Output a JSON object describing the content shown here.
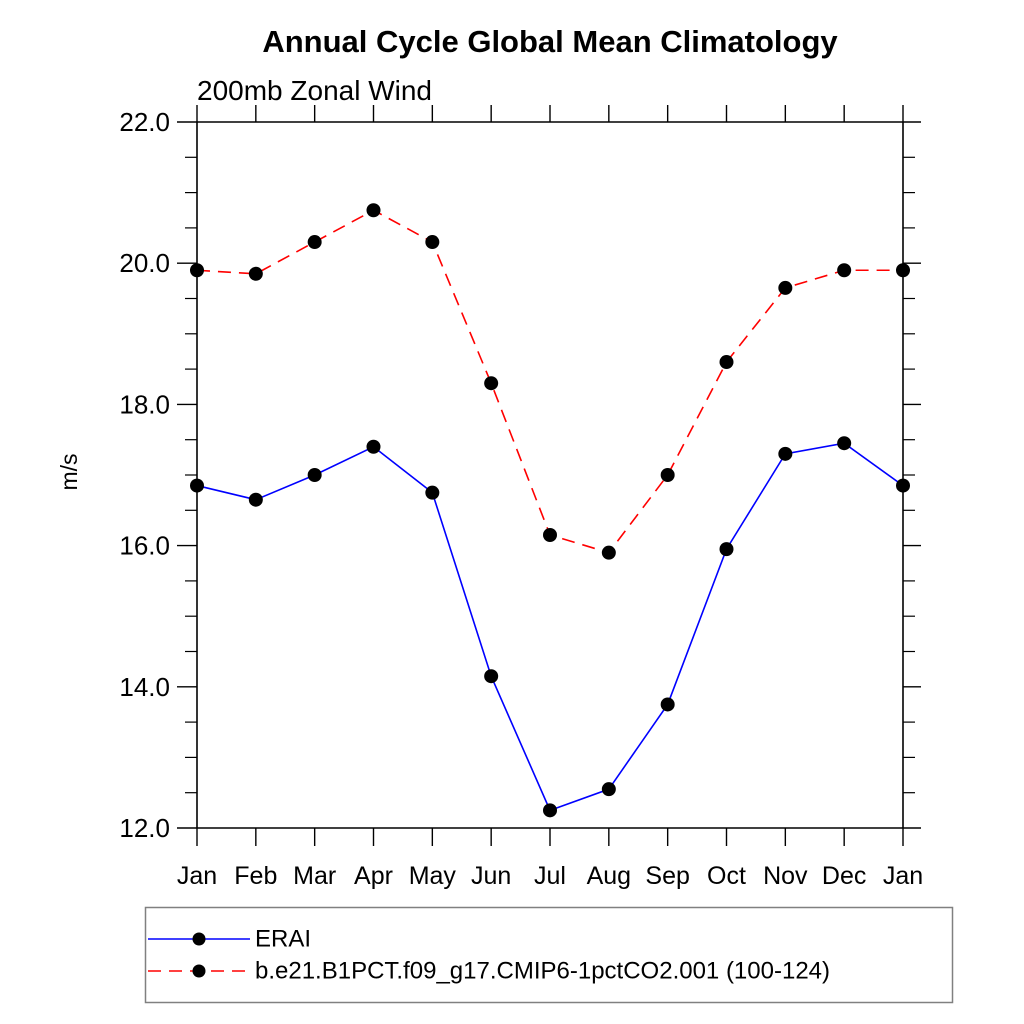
{
  "title": "Annual Cycle Global Mean Climatology",
  "subtitle": "200mb Zonal Wind",
  "ylabel": "m/s",
  "colors": {
    "axis": "#000000",
    "marker_fill": "#000000",
    "legend_border": "#808080",
    "background": "#ffffff",
    "erai_line": "#0000ff",
    "model_line": "#ff0000"
  },
  "chart_data": {
    "type": "line",
    "title": "Annual Cycle Global Mean Climatology",
    "subtitle": "200mb Zonal Wind",
    "xlabel": "",
    "ylabel": "m/s",
    "categories": [
      "Jan",
      "Feb",
      "Mar",
      "Apr",
      "May",
      "Jun",
      "Jul",
      "Aug",
      "Sep",
      "Oct",
      "Nov",
      "Dec",
      "Jan"
    ],
    "series": [
      {
        "name": "ERAI",
        "color": "#0000ff",
        "line_style": "solid",
        "marker": "filled-black-circle",
        "values": [
          16.85,
          16.65,
          17.0,
          17.4,
          16.75,
          14.15,
          12.25,
          12.55,
          13.75,
          15.95,
          17.3,
          17.45,
          16.85
        ]
      },
      {
        "name": "b.e21.B1PCT.f09_g17.CMIP6-1pctCO2.001 (100-124)",
        "color": "#ff0000",
        "line_style": "dashed",
        "marker": "filled-black-circle",
        "values": [
          19.9,
          19.85,
          20.3,
          20.75,
          20.3,
          18.3,
          16.15,
          15.9,
          17.0,
          18.6,
          19.65,
          19.9,
          19.9
        ]
      }
    ],
    "ylim": [
      12.0,
      22.0
    ],
    "ytick_step": 2.0,
    "yminor_step": 0.5,
    "ytick_labels": [
      "12.0",
      "14.0",
      "16.0",
      "18.0",
      "20.0",
      "22.0"
    ],
    "grid": false,
    "legend_position": "bottom-left-box"
  }
}
